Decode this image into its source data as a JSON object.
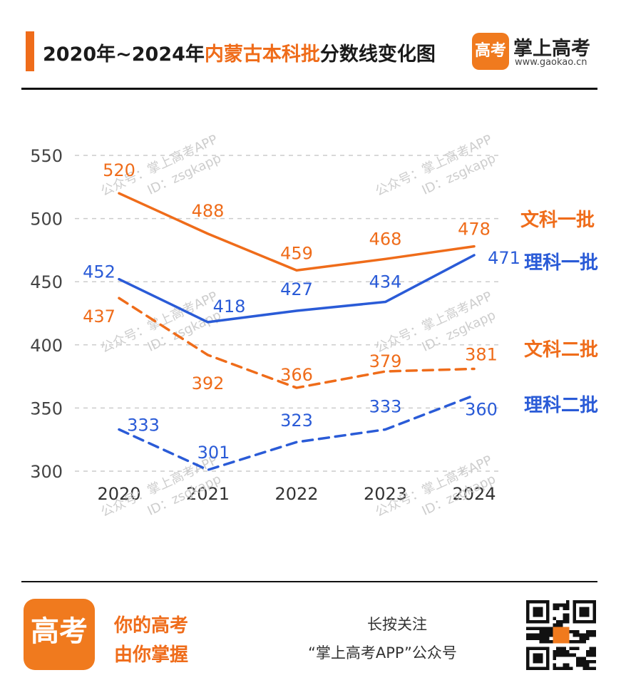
{
  "header": {
    "title_prefix": "2020年~2024年",
    "title_highlight": "内蒙古本科批",
    "title_suffix": "分数线变化图",
    "brand_logo_text": "高考",
    "brand_name": "掌上高考",
    "brand_url": "www.gaokao.cn"
  },
  "watermark": {
    "line1": "公众号：掌上高考APP",
    "line2": "ID：zsgkapp"
  },
  "colors": {
    "orange": "#ef6c1a",
    "blue": "#2a5bd7",
    "grid": "#cccccc",
    "axis_text": "#444444"
  },
  "chart_data": {
    "type": "line",
    "categories": [
      "2020",
      "2021",
      "2022",
      "2023",
      "2024"
    ],
    "ylim": [
      300,
      550
    ],
    "yticks": [
      300,
      350,
      400,
      450,
      500,
      550
    ],
    "grid": true,
    "legend_position": "right, at line ends",
    "series": [
      {
        "name": "文科一批",
        "values": [
          520,
          488,
          459,
          468,
          478
        ],
        "color": "#ef6c1a",
        "style": "solid"
      },
      {
        "name": "理科一批",
        "values": [
          452,
          418,
          427,
          434,
          471
        ],
        "color": "#2a5bd7",
        "style": "solid"
      },
      {
        "name": "文科二批",
        "values": [
          437,
          392,
          366,
          379,
          381
        ],
        "color": "#ef6c1a",
        "style": "dashed"
      },
      {
        "name": "理科二批",
        "values": [
          333,
          301,
          323,
          333,
          360
        ],
        "color": "#2a5bd7",
        "style": "dashed"
      }
    ]
  },
  "footer": {
    "logo_text": "高考",
    "slogan_line1": "你的高考",
    "slogan_line2": "由你掌握",
    "follow_line1": "长按关注",
    "follow_line2": "“掌上高考APP”公众号"
  }
}
